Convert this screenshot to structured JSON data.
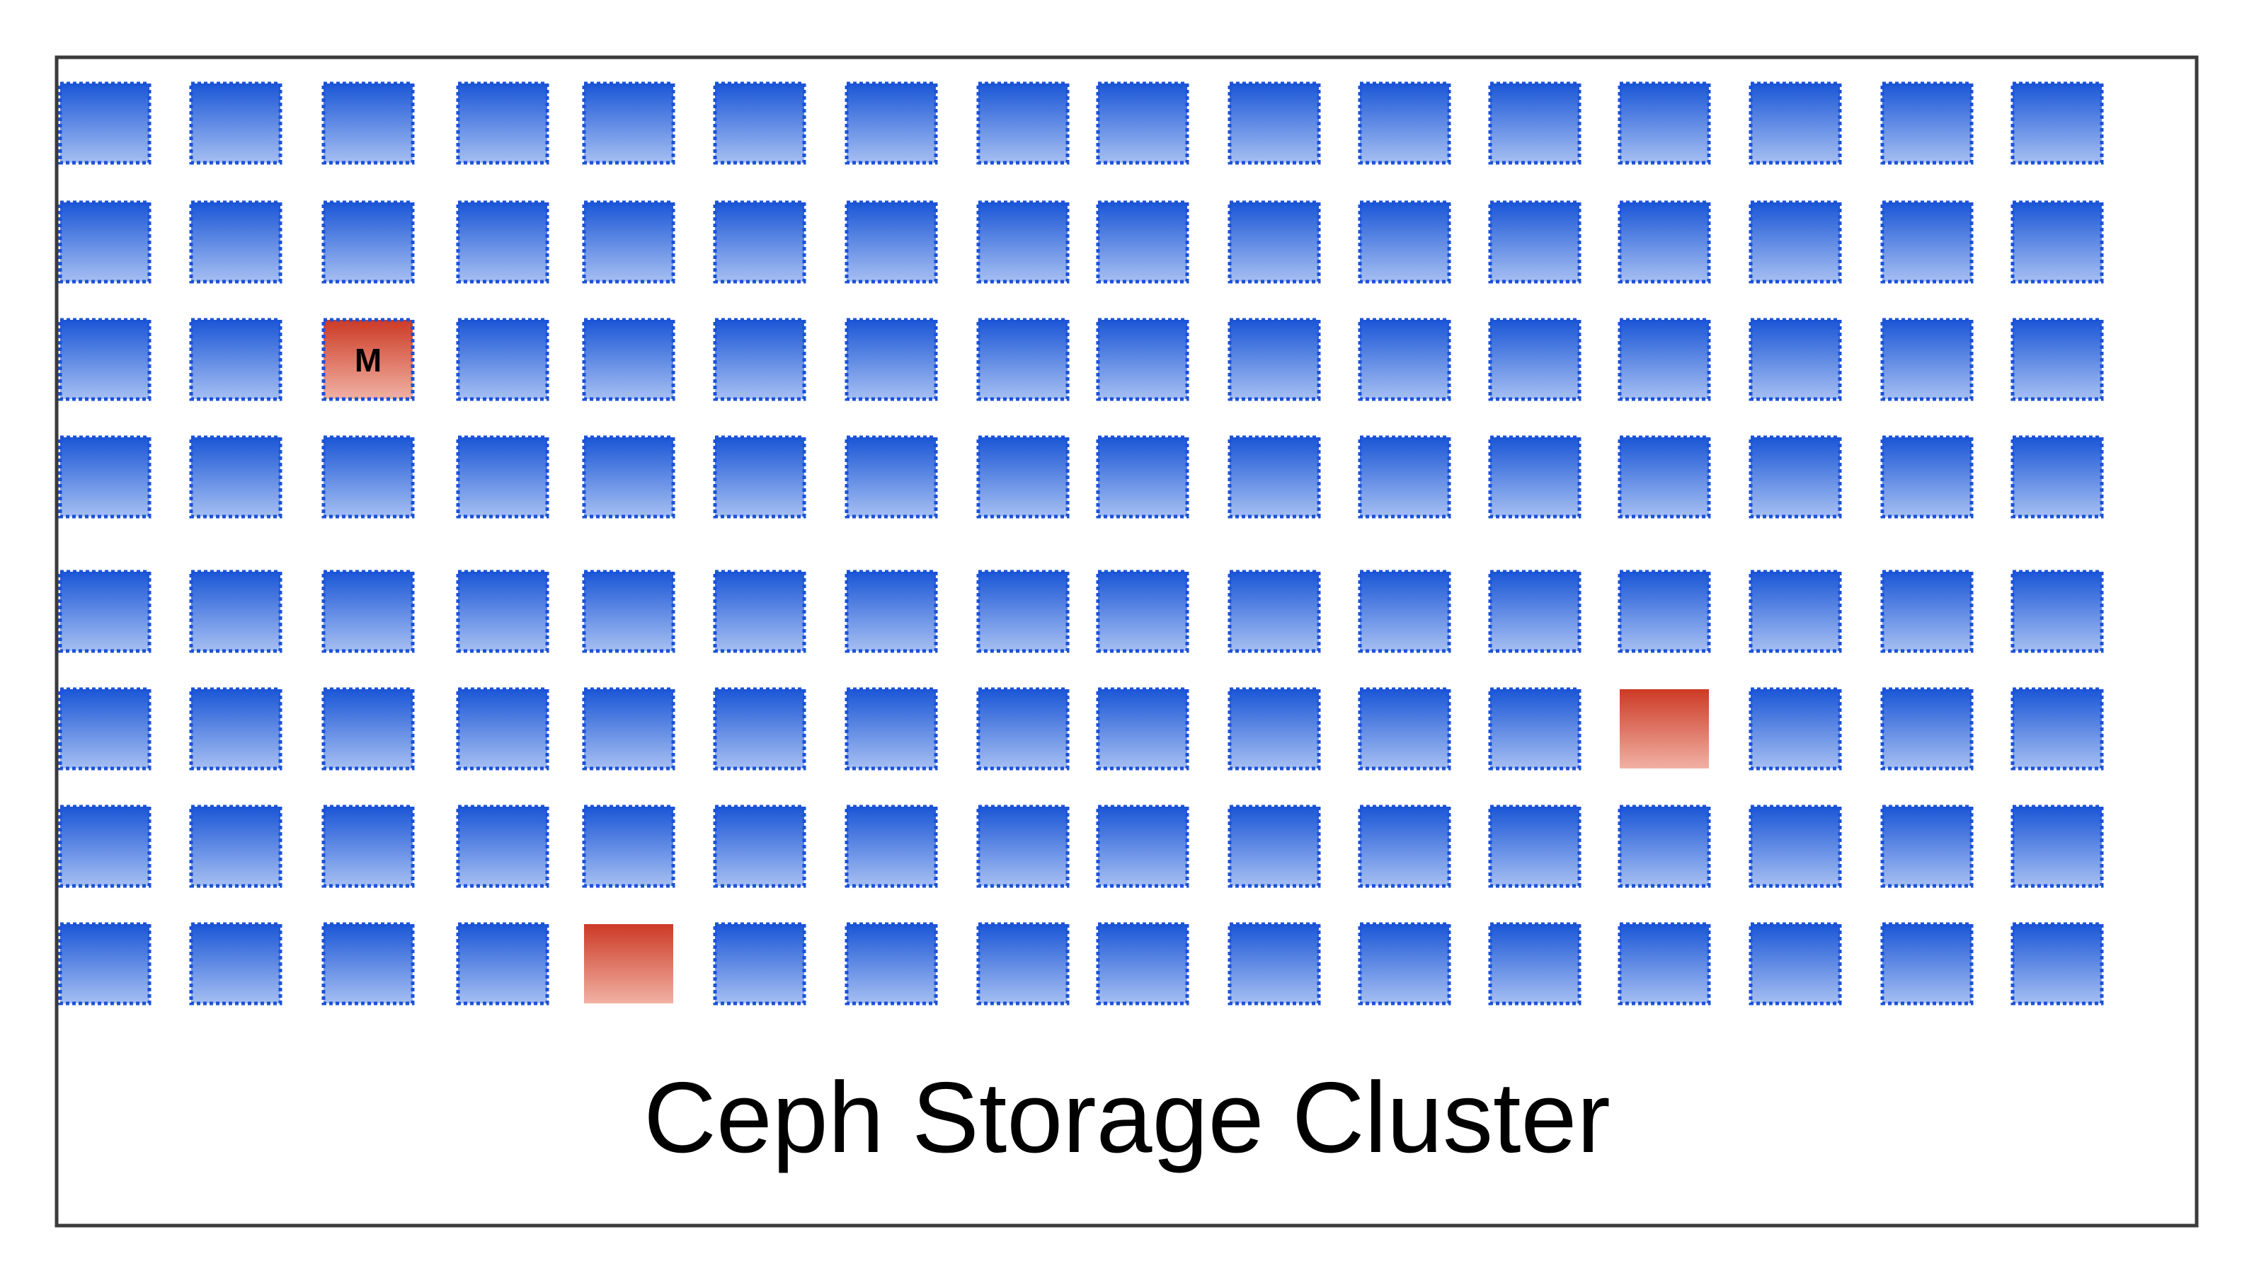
{
  "cluster": {
    "title": "Ceph Storage Cluster"
  },
  "grid": {
    "rows": 8,
    "columns": 16
  },
  "node_styles": {
    "normal": {
      "gradient_top": "#1a56d6",
      "gradient_bottom": "#a6bff2",
      "border": "#1c52d8"
    },
    "highlighted": {
      "gradient_top": "#cc3a25",
      "gradient_bottom": "#f1b1a4",
      "border": "#b0301f"
    }
  },
  "frame": {
    "border_color": "#3b3b3b"
  },
  "special_nodes": [
    {
      "row": 3,
      "col": 3,
      "type": "monitor",
      "label": "M",
      "bordered": true
    },
    {
      "row": 6,
      "col": 13,
      "type": "highlighted",
      "label": "",
      "bordered": false
    },
    {
      "row": 8,
      "col": 5,
      "type": "highlighted",
      "label": "",
      "bordered": false
    }
  ]
}
